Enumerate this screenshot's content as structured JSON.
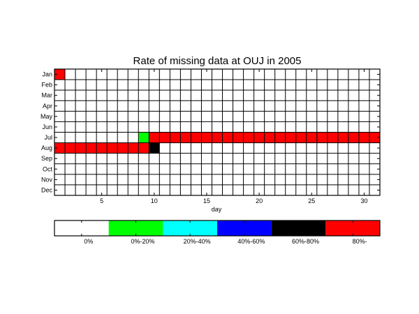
{
  "chart_data": {
    "type": "heatmap",
    "title": "Rate of missing data at OUJ in 2005",
    "xlabel": "day",
    "ylabel": "",
    "x_ticks": [
      5,
      10,
      15,
      20,
      25,
      30
    ],
    "days": 31,
    "months": [
      "Jan",
      "Feb",
      "Mar",
      "Apr",
      "May",
      "Jun",
      "Jul",
      "Aug",
      "Sep",
      "Oct",
      "Nov",
      "Dec"
    ],
    "grid": true,
    "legend_position": "bottom",
    "categories": [
      {
        "label": "0%",
        "color": "#ffffff"
      },
      {
        "label": "0%-20%",
        "color": "#00ff00"
      },
      {
        "label": "20%-40%",
        "color": "#00ffff"
      },
      {
        "label": "40%-60%",
        "color": "#0000ff"
      },
      {
        "label": "60%-80%",
        "color": "#000000"
      },
      {
        "label": "80%-",
        "color": "#ff0000"
      }
    ],
    "cells": [
      {
        "month": "Jan",
        "day": 1,
        "category": 5
      },
      {
        "month": "Jul",
        "day": 9,
        "category": 1
      },
      {
        "month": "Jul",
        "day": 10,
        "category": 5
      },
      {
        "month": "Jul",
        "day": 11,
        "category": 5
      },
      {
        "month": "Jul",
        "day": 12,
        "category": 5
      },
      {
        "month": "Jul",
        "day": 13,
        "category": 5
      },
      {
        "month": "Jul",
        "day": 14,
        "category": 5
      },
      {
        "month": "Jul",
        "day": 15,
        "category": 5
      },
      {
        "month": "Jul",
        "day": 16,
        "category": 5
      },
      {
        "month": "Jul",
        "day": 17,
        "category": 5
      },
      {
        "month": "Jul",
        "day": 18,
        "category": 5
      },
      {
        "month": "Jul",
        "day": 19,
        "category": 5
      },
      {
        "month": "Jul",
        "day": 20,
        "category": 5
      },
      {
        "month": "Jul",
        "day": 21,
        "category": 5
      },
      {
        "month": "Jul",
        "day": 22,
        "category": 5
      },
      {
        "month": "Jul",
        "day": 23,
        "category": 5
      },
      {
        "month": "Jul",
        "day": 24,
        "category": 5
      },
      {
        "month": "Jul",
        "day": 25,
        "category": 5
      },
      {
        "month": "Jul",
        "day": 26,
        "category": 5
      },
      {
        "month": "Jul",
        "day": 27,
        "category": 5
      },
      {
        "month": "Jul",
        "day": 28,
        "category": 5
      },
      {
        "month": "Jul",
        "day": 29,
        "category": 5
      },
      {
        "month": "Jul",
        "day": 30,
        "category": 5
      },
      {
        "month": "Jul",
        "day": 31,
        "category": 5
      },
      {
        "month": "Aug",
        "day": 1,
        "category": 5
      },
      {
        "month": "Aug",
        "day": 2,
        "category": 5
      },
      {
        "month": "Aug",
        "day": 3,
        "category": 5
      },
      {
        "month": "Aug",
        "day": 4,
        "category": 5
      },
      {
        "month": "Aug",
        "day": 5,
        "category": 5
      },
      {
        "month": "Aug",
        "day": 6,
        "category": 5
      },
      {
        "month": "Aug",
        "day": 7,
        "category": 5
      },
      {
        "month": "Aug",
        "day": 8,
        "category": 5
      },
      {
        "month": "Aug",
        "day": 9,
        "category": 5
      },
      {
        "month": "Aug",
        "day": 10,
        "category": 4
      }
    ]
  }
}
